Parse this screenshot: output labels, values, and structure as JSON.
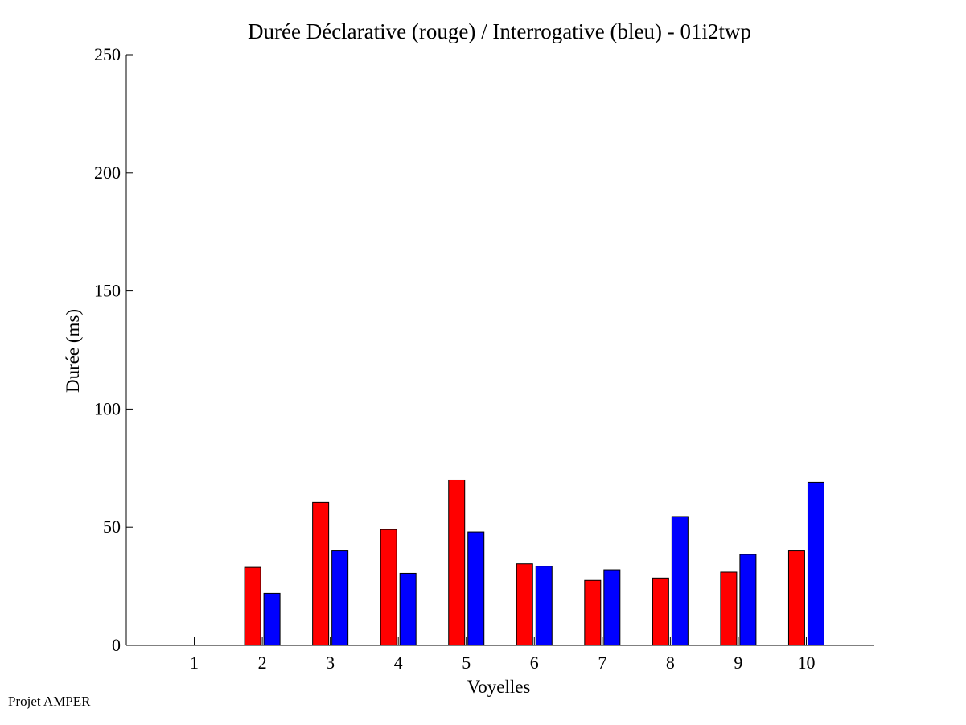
{
  "chart_data": {
    "type": "bar",
    "title": "Durée Déclarative (rouge) / Interrogative (bleu) - 01i2twp",
    "xlabel": "Voyelles",
    "ylabel": "Durée (ms)",
    "ylim": [
      0,
      250
    ],
    "yticks": [
      0,
      50,
      100,
      150,
      200,
      250
    ],
    "categories": [
      "1",
      "2",
      "3",
      "4",
      "5",
      "6",
      "7",
      "8",
      "9",
      "10"
    ],
    "series": [
      {
        "color": "#ff0000",
        "values": [
          0,
          33,
          60.5,
          49,
          70,
          34.5,
          27.5,
          28.5,
          31,
          40
        ]
      },
      {
        "color": "#0000ff",
        "values": [
          0,
          22,
          40,
          30.5,
          48,
          33.5,
          32,
          54.5,
          38.5,
          69
        ]
      }
    ],
    "grid": false,
    "legend": "none"
  },
  "footer": {
    "note": "Projet AMPER"
  }
}
